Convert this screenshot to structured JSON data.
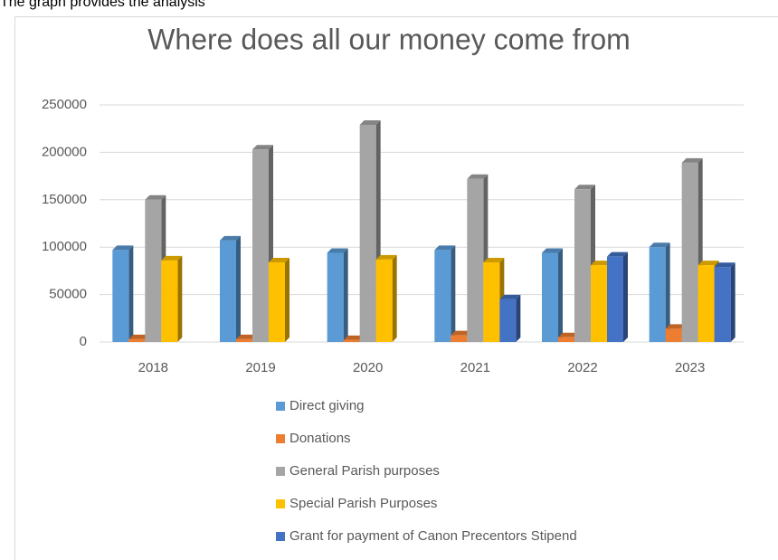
{
  "caption": "The graph provides the analysis",
  "chart_data": {
    "type": "bar3d",
    "title": "Where does all our money come from",
    "categories": [
      "2018",
      "2019",
      "2020",
      "2021",
      "2022",
      "2023"
    ],
    "series": [
      {
        "name": "Direct giving",
        "color": "#5b9bd5",
        "values": [
          97000,
          107000,
          94000,
          97000,
          94000,
          100000
        ]
      },
      {
        "name": "Donations",
        "color": "#ed7d31",
        "values": [
          3000,
          3000,
          2000,
          7000,
          5000,
          14000
        ]
      },
      {
        "name": "General Parish purposes",
        "color": "#a5a5a5",
        "values": [
          150000,
          203000,
          229000,
          172000,
          161000,
          189000
        ]
      },
      {
        "name": "Special Parish Purposes",
        "color": "#ffc000",
        "values": [
          86000,
          84000,
          87000,
          84000,
          81000,
          81000
        ]
      },
      {
        "name": "Grant for payment of Canon Precentors Stipend",
        "color": "#4472c4",
        "values": [
          null,
          null,
          null,
          45000,
          90000,
          79000
        ]
      }
    ],
    "ylim": [
      0,
      250000
    ],
    "yticks": [
      0,
      50000,
      100000,
      150000,
      200000,
      250000
    ],
    "grid": true,
    "legend": "bottom"
  }
}
